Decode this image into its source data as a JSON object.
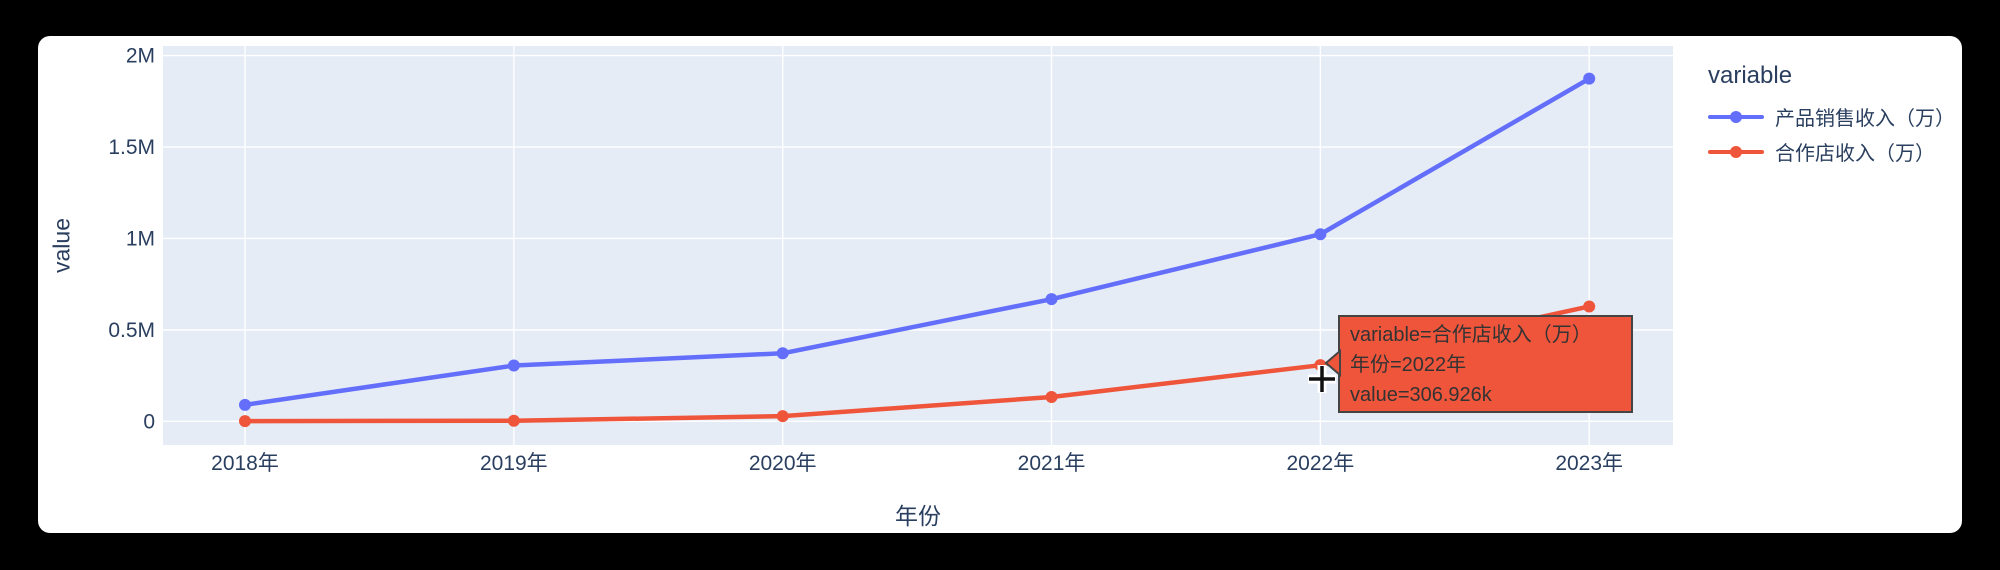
{
  "chart_data": {
    "type": "line",
    "xlabel": "年份",
    "ylabel": "value",
    "categories": [
      "2018年",
      "2019年",
      "2020年",
      "2021年",
      "2022年",
      "2023年"
    ],
    "series": [
      {
        "name": "产品销售收入（万）",
        "color": "#636EFA",
        "values": [
          90000,
          305000,
          372000,
          668000,
          1023000,
          1874000
        ]
      },
      {
        "name": "合作店收入（万）",
        "color": "#EF553B",
        "values": [
          1000,
          3000,
          28000,
          133000,
          306926,
          628000
        ]
      }
    ],
    "y_ticks": [
      {
        "value": 0,
        "label": "0"
      },
      {
        "value": 500000,
        "label": "0.5M"
      },
      {
        "value": 1000000,
        "label": "1M"
      },
      {
        "value": 1500000,
        "label": "1.5M"
      },
      {
        "value": 2000000,
        "label": "2M"
      }
    ],
    "ylim": [
      0,
      2000000
    ],
    "grid": true,
    "legend_position": "top-right",
    "plot_bg": "#E5ECF6",
    "grid_color": "#FFFFFF",
    "text_color": "#2A3F5F"
  },
  "legend": {
    "title": "variable",
    "items": [
      {
        "label": "产品销售收入（万）",
        "color": "#636EFA"
      },
      {
        "label": "合作店收入（万）",
        "color": "#EF553B"
      }
    ]
  },
  "tooltip": {
    "lines": [
      "variable=合作店收入（万）",
      "年份=2022年",
      "value=306.926k"
    ],
    "bg": "#EF553B",
    "border": "#444444",
    "text_color": "#333333",
    "anchor_series": 1,
    "anchor_index": 4
  }
}
